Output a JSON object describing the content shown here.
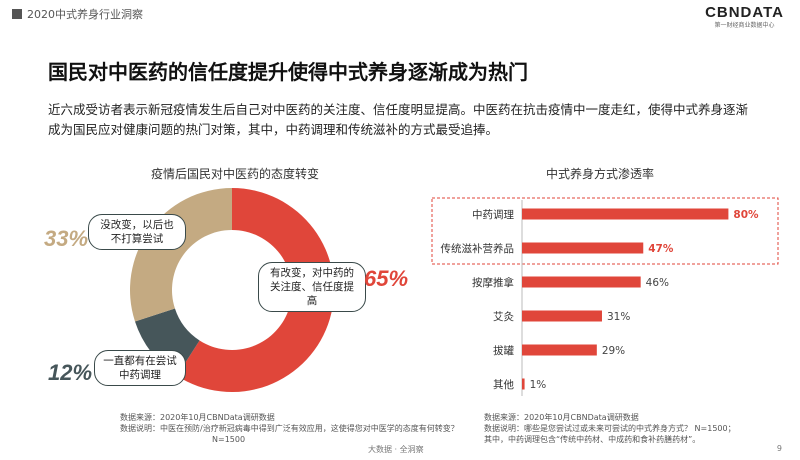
{
  "header": {
    "section": "2020中式养身行业洞察",
    "brand": "CBNDATA",
    "brand_sub": "第一财经商业数据中心"
  },
  "headline": "国民对中医药的信任度提升使得中式养身逐渐成为热门",
  "intro": "近六成受访者表示新冠疫情发生后自己对中医药的关注度、信任度明显提高。中医药在抗击疫情中一度走红，使得中式养身逐渐成为国民应对健康问题的热门对策，其中，中药调理和传统滋补的方式最受追捧。",
  "colors": {
    "red": "#e0463a",
    "tan": "#c4aa82",
    "slate": "#46565a",
    "highlight_border": "#e0463a"
  },
  "chart_data": [
    {
      "type": "pie",
      "title": "疫情后国民对中医药的态度转变",
      "slices": [
        {
          "label": "有改变，对中药的关注度、信任度提高",
          "label_line1": "有改变，对中药的",
          "label_line2": "关注度、信任度提高",
          "value": 65,
          "display": "65%",
          "color": "#e0463a"
        },
        {
          "label": "一直都有在尝试中药调理",
          "label_line1": "一直都有在尝试",
          "label_line2": "中药调理",
          "value": 12,
          "display": "12%",
          "color": "#46565a"
        },
        {
          "label": "没改变，以后也不打算尝试",
          "label_line1": "没改变，以后也",
          "label_line2": "不打算尝试",
          "value": 33,
          "display": "33%",
          "color": "#c4aa82"
        }
      ]
    },
    {
      "type": "bar",
      "orientation": "horizontal",
      "title": "中式养身方式渗透率",
      "categories": [
        "中药调理",
        "传统滋补营养品",
        "按摩推拿",
        "艾灸",
        "拔罐",
        "其他"
      ],
      "values": [
        80,
        47,
        46,
        31,
        29,
        1
      ],
      "value_labels": [
        "80%",
        "47%",
        "46%",
        "31%",
        "29%",
        "1%"
      ],
      "highlighted": [
        "中药调理",
        "传统滋补营养品"
      ],
      "xlim": [
        0,
        100
      ]
    }
  ],
  "sources": {
    "left_line1": "数据来源：2020年10月CBNData调研数据",
    "left_line2": "数据说明：中医在预防/治疗新冠病毒中得到广泛有效应用，这使得您对中医学的态度有何转变？",
    "left_line3": "N=1500",
    "right_line1": "数据来源：2020年10月CBNData调研数据",
    "right_line2": "数据说明：哪些是您尝试过或未来可尝试的中式养身方式？ N=1500；",
    "right_line3": "其中，中药调理包含“传统中药材、中成药和食补药膳药材”。"
  },
  "footer": {
    "center": "大数据 · 全洞察",
    "page": "9"
  }
}
